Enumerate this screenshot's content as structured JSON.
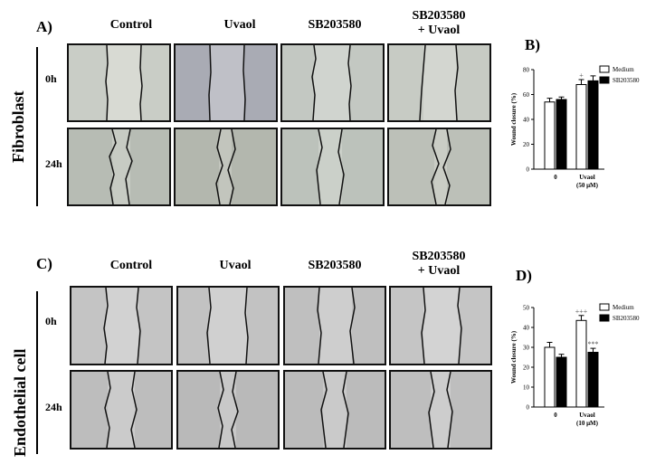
{
  "panels": {
    "A": "A)",
    "B": "B)",
    "C": "C)",
    "D": "D)"
  },
  "top": {
    "side_label": "Fibroblast",
    "columns": [
      "Control",
      "Uvaol",
      "SB203580",
      "SB203580\n+ Uvaol"
    ],
    "rows": [
      "0h",
      "24h"
    ]
  },
  "bottom": {
    "side_label": "Endothelial cell",
    "columns": [
      "Control",
      "Uvaol",
      "SB203580",
      "SB203580\n+ Uvaol"
    ],
    "rows": [
      "0h",
      "24h"
    ]
  },
  "chart_data": [
    {
      "type": "bar",
      "panel": "B)",
      "categories": [
        "0",
        "Uvaol\n(50 μM)"
      ],
      "series": [
        {
          "name": "Medium",
          "values": [
            54,
            68
          ],
          "errors": [
            3,
            4
          ],
          "color": "#ffffff"
        },
        {
          "name": "SB203580",
          "values": [
            56,
            71
          ],
          "errors": [
            2,
            4
          ],
          "color": "#000000"
        }
      ],
      "annotations": [
        {
          "category": 1,
          "series": 0,
          "text": "+"
        }
      ],
      "ylabel": "Wound closure (%)",
      "ylim": [
        0,
        80
      ],
      "yticks": [
        0,
        20,
        40,
        60,
        80
      ],
      "legend": "top-right"
    },
    {
      "type": "bar",
      "panel": "D)",
      "categories": [
        "0",
        "Uvaol\n(10 μM)"
      ],
      "series": [
        {
          "name": "Medium",
          "values": [
            30,
            43.5
          ],
          "errors": [
            2.5,
            2.5
          ],
          "color": "#ffffff"
        },
        {
          "name": "SB203580",
          "values": [
            25,
            27.5
          ],
          "errors": [
            1.5,
            2
          ],
          "color": "#000000"
        }
      ],
      "annotations": [
        {
          "category": 1,
          "series": 0,
          "text": "+++"
        },
        {
          "category": 1,
          "series": 1,
          "text": "***"
        }
      ],
      "ylabel": "Wound closure (%)",
      "ylim": [
        0,
        50
      ],
      "yticks": [
        0,
        10,
        20,
        30,
        40,
        50
      ],
      "legend": "top-right"
    }
  ]
}
